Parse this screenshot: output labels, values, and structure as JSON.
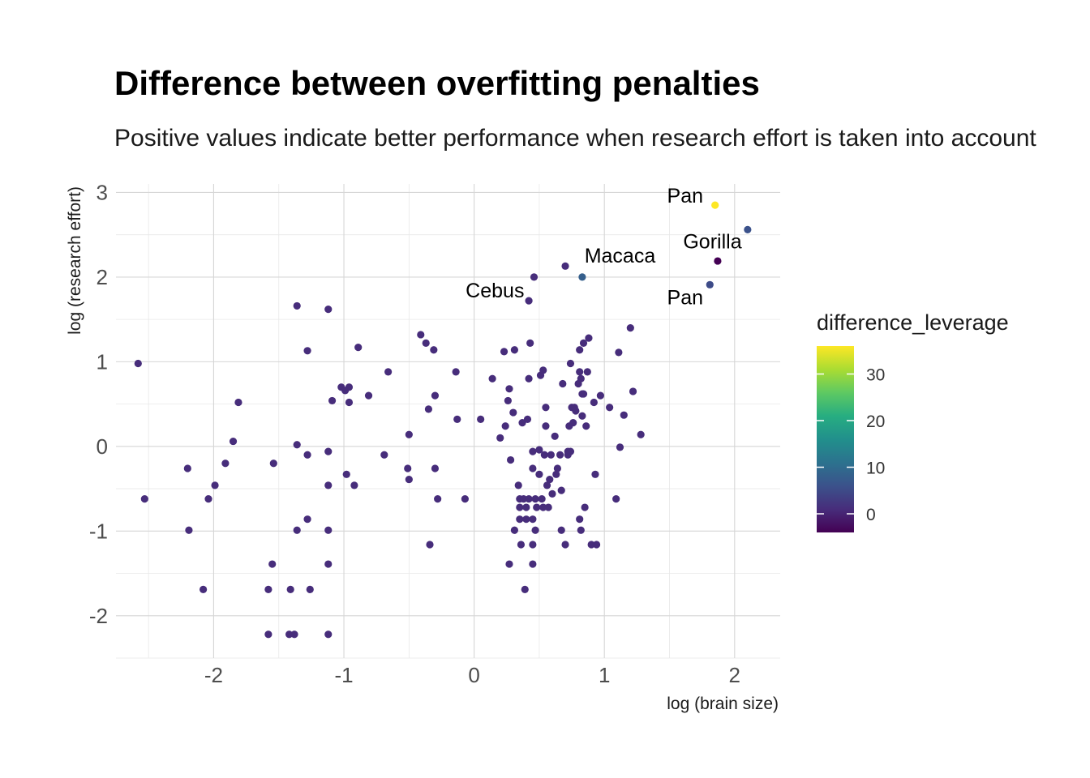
{
  "chart_data": {
    "type": "scatter",
    "title": "Difference between overfitting penalties",
    "subtitle": "Positive values indicate better performance when research effort is taken into account",
    "xlabel": "log (brain size)",
    "ylabel": "log (research effort)",
    "xlim": [
      -2.75,
      2.35
    ],
    "ylim": [
      -2.5,
      3.1
    ],
    "x_ticks": [
      -2,
      -1,
      0,
      1,
      2
    ],
    "y_ticks": [
      -2,
      -1,
      0,
      1,
      2,
      3
    ],
    "grid": true,
    "legend": {
      "title": "difference_leverage",
      "position": "right",
      "min": -4,
      "max": 36,
      "ticks": [
        0,
        10,
        20,
        30
      ],
      "colormap": "viridis"
    },
    "colors": {
      "low": "#440154",
      "mid": "#21908C",
      "high": "#FDE725",
      "default_point": "#472D7B"
    },
    "points": [
      {
        "x": -2.58,
        "y": 0.98
      },
      {
        "x": -2.53,
        "y": -0.62
      },
      {
        "x": -2.2,
        "y": -0.26
      },
      {
        "x": -2.19,
        "y": -0.99
      },
      {
        "x": -2.08,
        "y": -1.69
      },
      {
        "x": -2.04,
        "y": -0.62
      },
      {
        "x": -1.99,
        "y": -0.46
      },
      {
        "x": -1.91,
        "y": -0.2
      },
      {
        "x": -1.85,
        "y": 0.06
      },
      {
        "x": -1.81,
        "y": 0.52
      },
      {
        "x": -1.58,
        "y": -1.69
      },
      {
        "x": -1.58,
        "y": -2.22
      },
      {
        "x": -1.55,
        "y": -1.39
      },
      {
        "x": -1.54,
        "y": -0.2
      },
      {
        "x": -1.42,
        "y": -2.22
      },
      {
        "x": -1.41,
        "y": -1.69
      },
      {
        "x": -1.38,
        "y": -2.22
      },
      {
        "x": -1.36,
        "y": 1.66
      },
      {
        "x": -1.36,
        "y": 0.02
      },
      {
        "x": -1.36,
        "y": -0.99
      },
      {
        "x": -1.28,
        "y": 1.13
      },
      {
        "x": -1.28,
        "y": -0.1
      },
      {
        "x": -1.28,
        "y": -0.86
      },
      {
        "x": -1.26,
        "y": -1.69
      },
      {
        "x": -1.12,
        "y": 1.62
      },
      {
        "x": -1.12,
        "y": -0.06
      },
      {
        "x": -1.12,
        "y": -0.46
      },
      {
        "x": -1.12,
        "y": -0.99
      },
      {
        "x": -1.12,
        "y": -1.39
      },
      {
        "x": -1.12,
        "y": -2.22
      },
      {
        "x": -1.09,
        "y": 0.54
      },
      {
        "x": -1.02,
        "y": 0.7
      },
      {
        "x": -0.99,
        "y": 0.66
      },
      {
        "x": -0.98,
        "y": -0.33
      },
      {
        "x": -0.96,
        "y": 0.7
      },
      {
        "x": -0.96,
        "y": 0.52
      },
      {
        "x": -0.92,
        "y": -0.46
      },
      {
        "x": -0.89,
        "y": 1.17
      },
      {
        "x": -0.81,
        "y": 0.6
      },
      {
        "x": -0.69,
        "y": -0.1
      },
      {
        "x": -0.66,
        "y": 0.88
      },
      {
        "x": -0.51,
        "y": -0.26
      },
      {
        "x": -0.5,
        "y": -0.39
      },
      {
        "x": -0.5,
        "y": 0.14
      },
      {
        "x": -0.41,
        "y": 1.32
      },
      {
        "x": -0.37,
        "y": 1.22
      },
      {
        "x": -0.35,
        "y": 0.44
      },
      {
        "x": -0.34,
        "y": -1.16
      },
      {
        "x": -0.31,
        "y": 1.14
      },
      {
        "x": -0.3,
        "y": 0.6
      },
      {
        "x": -0.3,
        "y": -0.26
      },
      {
        "x": -0.28,
        "y": -0.62
      },
      {
        "x": -0.14,
        "y": 0.88
      },
      {
        "x": -0.13,
        "y": 0.32
      },
      {
        "x": -0.07,
        "y": -0.62
      },
      {
        "x": 0.05,
        "y": 0.32
      },
      {
        "x": 0.14,
        "y": 0.8
      },
      {
        "x": 0.2,
        "y": 0.1
      },
      {
        "x": 0.23,
        "y": 1.12
      },
      {
        "x": 0.24,
        "y": 0.24
      },
      {
        "x": 0.26,
        "y": 0.54
      },
      {
        "x": 0.27,
        "y": 0.68
      },
      {
        "x": 0.27,
        "y": -1.39
      },
      {
        "x": 0.28,
        "y": -0.16
      },
      {
        "x": 0.3,
        "y": 0.4
      },
      {
        "x": 0.31,
        "y": 1.14
      },
      {
        "x": 0.31,
        "y": -0.99
      },
      {
        "x": 0.34,
        "y": -0.46
      },
      {
        "x": 0.35,
        "y": -0.62
      },
      {
        "x": 0.35,
        "y": -0.72
      },
      {
        "x": 0.35,
        "y": -0.86
      },
      {
        "x": 0.36,
        "y": -1.16
      },
      {
        "x": 0.37,
        "y": 0.28
      },
      {
        "x": 0.38,
        "y": -0.62
      },
      {
        "x": 0.39,
        "y": -1.69
      },
      {
        "x": 0.4,
        "y": -0.72
      },
      {
        "x": 0.4,
        "y": -0.86
      },
      {
        "x": 0.41,
        "y": 0.32
      },
      {
        "x": 0.42,
        "y": 0.8
      },
      {
        "x": 0.42,
        "y": -0.62
      },
      {
        "x": 0.43,
        "y": 1.22
      },
      {
        "x": 0.45,
        "y": -0.06
      },
      {
        "x": 0.45,
        "y": -0.26
      },
      {
        "x": 0.45,
        "y": -0.86
      },
      {
        "x": 0.45,
        "y": -1.39
      },
      {
        "x": 0.45,
        "y": -1.16
      },
      {
        "x": 0.46,
        "y": 2.0
      },
      {
        "x": 0.47,
        "y": -0.99
      },
      {
        "x": 0.47,
        "y": -0.62
      },
      {
        "x": 0.48,
        "y": -0.72
      },
      {
        "x": 0.5,
        "y": -0.04
      },
      {
        "x": 0.5,
        "y": -0.33
      },
      {
        "x": 0.51,
        "y": 0.84
      },
      {
        "x": 0.52,
        "y": -0.62
      },
      {
        "x": 0.53,
        "y": 0.9
      },
      {
        "x": 0.53,
        "y": -0.72
      },
      {
        "x": 0.54,
        "y": -0.1
      },
      {
        "x": 0.55,
        "y": 0.46
      },
      {
        "x": 0.55,
        "y": 0.24
      },
      {
        "x": 0.56,
        "y": -0.46
      },
      {
        "x": 0.57,
        "y": -0.72
      },
      {
        "x": 0.58,
        "y": -0.39
      },
      {
        "x": 0.59,
        "y": -0.1
      },
      {
        "x": 0.6,
        "y": -0.56
      },
      {
        "x": 0.62,
        "y": 0.12
      },
      {
        "x": 0.63,
        "y": -0.33
      },
      {
        "x": 0.64,
        "y": -0.26
      },
      {
        "x": 0.66,
        "y": -0.1
      },
      {
        "x": 0.67,
        "y": -0.52
      },
      {
        "x": 0.67,
        "y": -0.99
      },
      {
        "x": 0.68,
        "y": 0.74
      },
      {
        "x": 0.7,
        "y": -1.16
      },
      {
        "x": 0.7,
        "y": 2.13
      },
      {
        "x": 0.72,
        "y": -0.06
      },
      {
        "x": 0.72,
        "y": -0.1
      },
      {
        "x": 0.73,
        "y": 0.24
      },
      {
        "x": 0.74,
        "y": 0.98
      },
      {
        "x": 0.74,
        "y": -0.06
      },
      {
        "x": 0.75,
        "y": 0.46
      },
      {
        "x": 0.76,
        "y": 0.28
      },
      {
        "x": 0.77,
        "y": 0.46
      },
      {
        "x": 0.78,
        "y": 0.42
      },
      {
        "x": 0.8,
        "y": 0.74
      },
      {
        "x": 0.81,
        "y": 0.88
      },
      {
        "x": 0.81,
        "y": 1.14
      },
      {
        "x": 0.81,
        "y": -0.86
      },
      {
        "x": 0.82,
        "y": -0.99
      },
      {
        "x": 0.82,
        "y": 0.8
      },
      {
        "x": 0.83,
        "y": 0.36
      },
      {
        "x": 0.83,
        "y": 0.62
      },
      {
        "x": 0.84,
        "y": 1.22
      },
      {
        "x": 0.84,
        "y": 0.62
      },
      {
        "x": 0.85,
        "y": -0.72
      },
      {
        "x": 0.86,
        "y": 0.24
      },
      {
        "x": 0.87,
        "y": 0.88
      },
      {
        "x": 0.88,
        "y": 1.28
      },
      {
        "x": 0.9,
        "y": -1.16
      },
      {
        "x": 0.92,
        "y": 0.52
      },
      {
        "x": 0.93,
        "y": -0.33
      },
      {
        "x": 0.94,
        "y": -1.16
      },
      {
        "x": 0.97,
        "y": 0.6
      },
      {
        "x": 1.04,
        "y": 0.46
      },
      {
        "x": 1.09,
        "y": -0.62
      },
      {
        "x": 1.11,
        "y": 1.11
      },
      {
        "x": 1.12,
        "y": -0.01
      },
      {
        "x": 1.15,
        "y": 0.37
      },
      {
        "x": 1.2,
        "y": 1.4
      },
      {
        "x": 1.22,
        "y": 0.65
      },
      {
        "x": 1.28,
        "y": 0.14
      },
      {
        "x": 0.42,
        "y": 1.72
      },
      {
        "x": 0.83,
        "y": 2.0,
        "c": 8
      },
      {
        "x": 1.81,
        "y": 1.91,
        "c": 5
      },
      {
        "x": 1.87,
        "y": 2.19,
        "c": -4
      },
      {
        "x": 2.1,
        "y": 2.56,
        "c": 6
      },
      {
        "x": 1.85,
        "y": 2.85,
        "c": 36
      }
    ],
    "annotations": [
      {
        "text": "Pan",
        "x": 1.62,
        "y": 2.88
      },
      {
        "text": "Gorilla",
        "x": 1.83,
        "y": 2.34
      },
      {
        "text": "Macaca",
        "x": 1.12,
        "y": 2.17
      },
      {
        "text": "Cebus",
        "x": 0.16,
        "y": 1.76
      },
      {
        "text": "Pan",
        "x": 1.62,
        "y": 1.68
      }
    ]
  }
}
